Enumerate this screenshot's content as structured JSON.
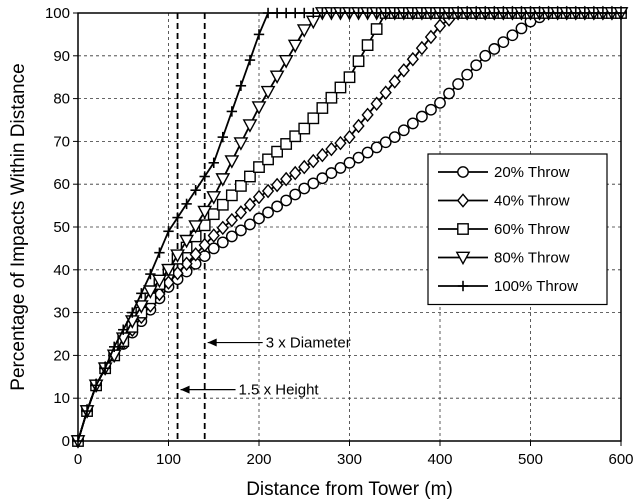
{
  "chart_data": {
    "type": "line",
    "title": "",
    "xlabel": "Distance from Tower (m)",
    "ylabel": "Percentage of Impacts Within Distance",
    "xlim": [
      0,
      600
    ],
    "ylim": [
      0,
      100
    ],
    "xticks": [
      "0",
      "100",
      "200",
      "300",
      "400",
      "500",
      "600"
    ],
    "yticks": [
      "0",
      "10",
      "20",
      "30",
      "40",
      "50",
      "60",
      "70",
      "80",
      "90",
      "100"
    ],
    "grid": "dashed",
    "legend_position": "right-middle",
    "series": [
      {
        "name": "20% Throw",
        "marker": "circle",
        "step": 10,
        "x": [
          0,
          10,
          20,
          30,
          40,
          70,
          100,
          150,
          200,
          250,
          300,
          350,
          400,
          450,
          500,
          520,
          600
        ],
        "y": [
          0,
          7,
          13,
          17,
          20,
          28,
          36,
          45,
          52,
          59,
          65,
          71,
          79,
          90,
          98,
          100,
          100
        ]
      },
      {
        "name": "40% Throw",
        "marker": "diamond",
        "step": 10,
        "x": [
          0,
          10,
          20,
          30,
          40,
          70,
          100,
          150,
          200,
          250,
          300,
          350,
          400,
          420,
          600
        ],
        "y": [
          0,
          7,
          13,
          17,
          20,
          29,
          37,
          48,
          57,
          64,
          71,
          84,
          97,
          100,
          100
        ]
      },
      {
        "name": "60% Throw",
        "marker": "square",
        "step": 10,
        "x": [
          0,
          10,
          20,
          30,
          40,
          70,
          100,
          150,
          200,
          250,
          300,
          340,
          350,
          600
        ],
        "y": [
          0,
          7,
          13,
          17,
          20,
          30,
          40,
          53,
          64,
          73,
          85,
          100,
          100,
          100
        ]
      },
      {
        "name": "80% Throw",
        "marker": "triangle",
        "step": 10,
        "x": [
          0,
          10,
          20,
          30,
          40,
          60,
          80,
          100,
          150,
          200,
          250,
          270,
          600
        ],
        "y": [
          0,
          7,
          13,
          17,
          20,
          28,
          35,
          40,
          57,
          78,
          96,
          100,
          100
        ]
      },
      {
        "name": "100% Throw",
        "marker": "plus",
        "step": 10,
        "x": [
          0,
          10,
          20,
          30,
          40,
          60,
          80,
          100,
          150,
          200,
          210,
          600
        ],
        "y": [
          0,
          7,
          13,
          17,
          22,
          30,
          39,
          49,
          65,
          95,
          100,
          100
        ]
      }
    ],
    "reference_lines": [
      {
        "x": 110,
        "label": "1.5 x Height",
        "label_y": 12
      },
      {
        "x": 140,
        "label": "3 x Diameter",
        "label_y": 23
      }
    ]
  }
}
